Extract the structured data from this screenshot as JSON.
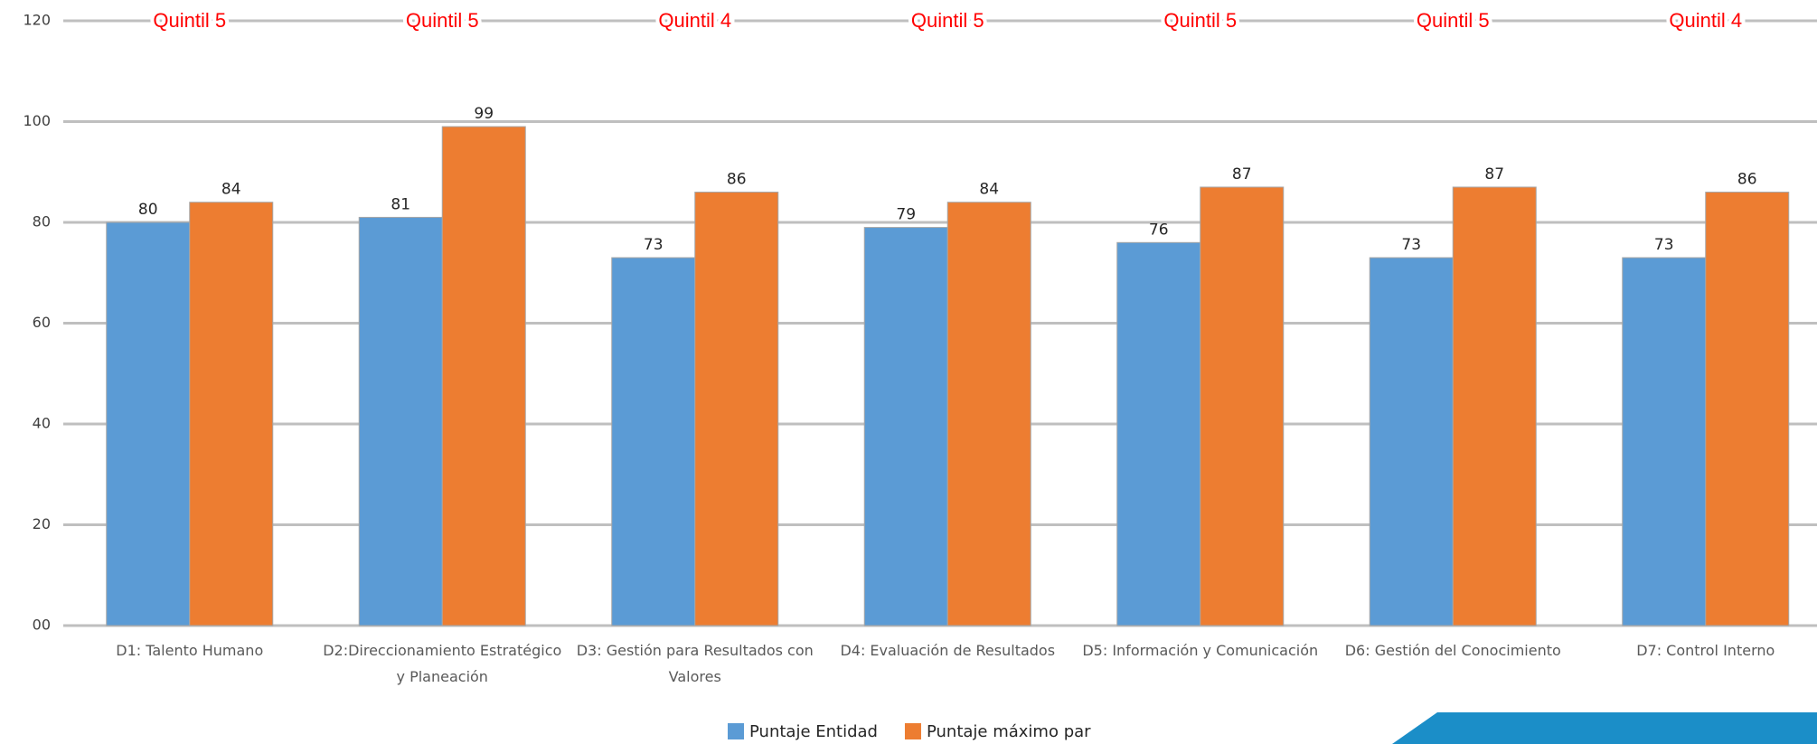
{
  "chart_data": {
    "type": "bar",
    "categories": [
      "D1: Talento Humano",
      "D2:Direccionamiento Estratégico y Planeación",
      "D3: Gestión para Resultados con Valores",
      "D4: Evaluación de Resultados",
      "D5: Información y Comunicación",
      "D6: Gestión del Conocimiento",
      "D7: Control Interno"
    ],
    "series": [
      {
        "name": "Puntaje Entidad",
        "color": "#5b9bd5",
        "values": [
          80,
          81,
          73,
          79,
          76,
          73,
          73
        ]
      },
      {
        "name": "Puntaje máximo par",
        "color": "#ed7d31",
        "values": [
          84,
          99,
          86,
          84,
          87,
          87,
          86
        ]
      }
    ],
    "annotations": [
      "Quintil 5",
      "Quintil 5",
      "Quintil 4",
      "Quintil 5",
      "Quintil 5",
      "Quintil 5",
      "Quintil 4"
    ],
    "ylim": [
      0,
      120
    ],
    "yticks": [
      {
        "value": 0,
        "label": "00"
      },
      20,
      40,
      60,
      80,
      100,
      120
    ],
    "grid": true,
    "legend": "bottom"
  }
}
